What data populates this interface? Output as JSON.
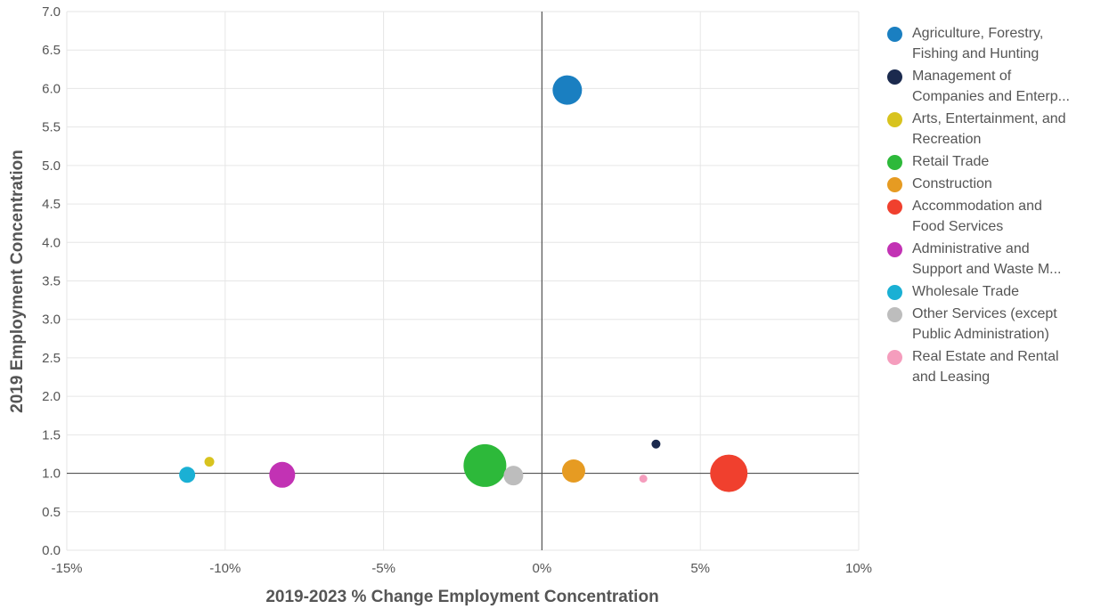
{
  "chart_data": {
    "type": "scatter",
    "subtype": "bubble",
    "xlabel": "2019-2023 % Change Employment Concentration",
    "ylabel": "2019 Employment Concentration",
    "xlim": [
      -15,
      10
    ],
    "ylim": [
      0,
      7
    ],
    "x_ticks": [
      "-15%",
      "-10%",
      "-5%",
      "0%",
      "5%",
      "10%"
    ],
    "x_tick_values": [
      -15,
      -10,
      -5,
      0,
      5,
      10
    ],
    "y_ticks": [
      "0.0",
      "0.5",
      "1.0",
      "1.5",
      "2.0",
      "2.5",
      "3.0",
      "3.5",
      "4.0",
      "4.5",
      "5.0",
      "5.5",
      "6.0",
      "6.5",
      "7.0"
    ],
    "y_tick_values": [
      0,
      0.5,
      1,
      1.5,
      2,
      2.5,
      3,
      3.5,
      4,
      4.5,
      5,
      5.5,
      6,
      6.5,
      7
    ],
    "reference_lines": {
      "x": 0,
      "y": 1.0
    },
    "grid": true,
    "legend_position": "right",
    "series": [
      {
        "name": "Agriculture, Forestry, Fishing and Hunting",
        "legend_lines": [
          "Agriculture, Forestry,",
          "Fishing and Hunting"
        ],
        "color": "#1a7fc1",
        "x": 0.8,
        "y": 5.98,
        "size": 33
      },
      {
        "name": "Management of Companies and Enterp...",
        "legend_lines": [
          "Management of",
          "Companies and Enterp..."
        ],
        "color": "#1b2a4e",
        "x": 3.6,
        "y": 1.38,
        "size": 10
      },
      {
        "name": "Arts, Entertainment, and Recreation",
        "legend_lines": [
          "Arts, Entertainment, and",
          "Recreation"
        ],
        "color": "#d8c31e",
        "x": -10.5,
        "y": 1.15,
        "size": 11
      },
      {
        "name": "Retail Trade",
        "legend_lines": [
          "Retail Trade"
        ],
        "color": "#2db93a",
        "x": -1.8,
        "y": 1.1,
        "size": 48
      },
      {
        "name": "Construction",
        "legend_lines": [
          "Construction"
        ],
        "color": "#e69b22",
        "x": 1.0,
        "y": 1.03,
        "size": 26
      },
      {
        "name": "Accommodation and Food Services",
        "legend_lines": [
          "Accommodation and",
          "Food Services"
        ],
        "color": "#f0402e",
        "x": 5.9,
        "y": 1.0,
        "size": 42
      },
      {
        "name": "Administrative and Support and Waste M...",
        "legend_lines": [
          "Administrative and",
          "Support and Waste M..."
        ],
        "color": "#c232b4",
        "x": -8.2,
        "y": 0.98,
        "size": 29
      },
      {
        "name": "Wholesale Trade",
        "legend_lines": [
          "Wholesale Trade"
        ],
        "color": "#1ab0d4",
        "x": -11.2,
        "y": 0.98,
        "size": 18
      },
      {
        "name": "Other Services (except Public Administration)",
        "legend_lines": [
          "Other Services (except",
          "Public Administration)"
        ],
        "color": "#bdbdbd",
        "x": -0.9,
        "y": 0.97,
        "size": 22
      },
      {
        "name": "Real Estate and Rental and Leasing",
        "legend_lines": [
          "Real Estate and Rental",
          "and Leasing"
        ],
        "color": "#f59dbd",
        "x": 3.2,
        "y": 0.93,
        "size": 9
      }
    ]
  }
}
